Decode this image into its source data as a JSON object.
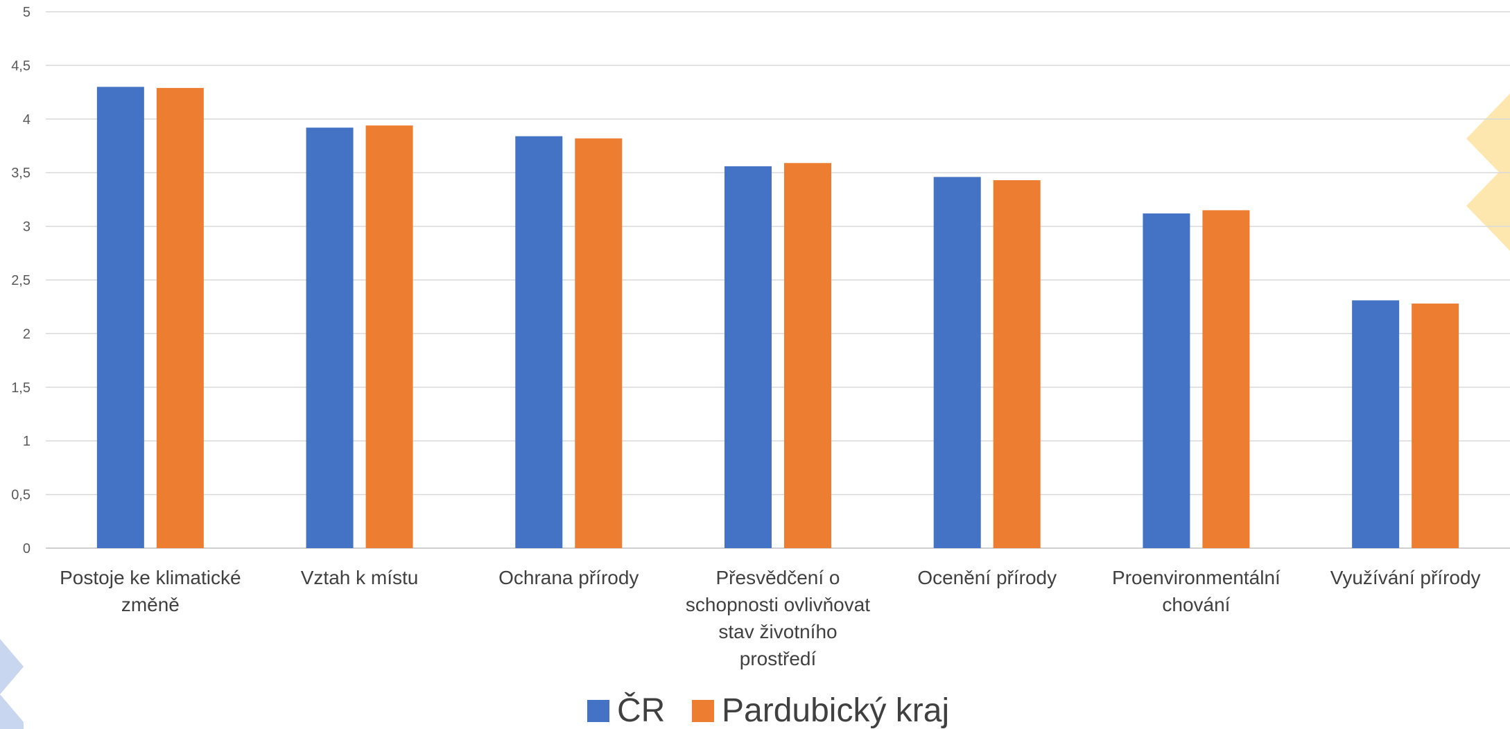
{
  "chart_data": {
    "type": "bar",
    "title": "",
    "xlabel": "",
    "ylabel": "",
    "ylim": [
      0,
      5
    ],
    "yticks": [
      "0",
      "0,5",
      "1",
      "1,5",
      "2",
      "2,5",
      "3",
      "3,5",
      "4",
      "4,5",
      "5"
    ],
    "ytick_values": [
      0,
      0.5,
      1,
      1.5,
      2,
      2.5,
      3,
      3.5,
      4,
      4.5,
      5
    ],
    "grid": true,
    "legend_position": "bottom",
    "categories": [
      [
        "Postoje ke klimatické",
        "změně"
      ],
      [
        "Vztah k místu"
      ],
      [
        "Ochrana přírody"
      ],
      [
        "Přesvědčení o",
        "schopnosti ovlivňovat",
        "stav životního",
        "prostředí"
      ],
      [
        "Ocenění přírody"
      ],
      [
        "Proenvironmentální",
        "chování"
      ],
      [
        "Využívání přírody"
      ]
    ],
    "series": [
      {
        "name": "ČR",
        "color": "#4472C4",
        "values": [
          4.3,
          3.92,
          3.84,
          3.56,
          3.46,
          3.12,
          2.31
        ]
      },
      {
        "name": "Pardubický kraj",
        "color": "#ED7D31",
        "values": [
          4.29,
          3.94,
          3.82,
          3.59,
          3.43,
          3.15,
          2.28
        ]
      }
    ]
  },
  "decor": {
    "right_chevron_color": "#FDE7AE",
    "left_chevron_color": "#C9D6F0"
  }
}
